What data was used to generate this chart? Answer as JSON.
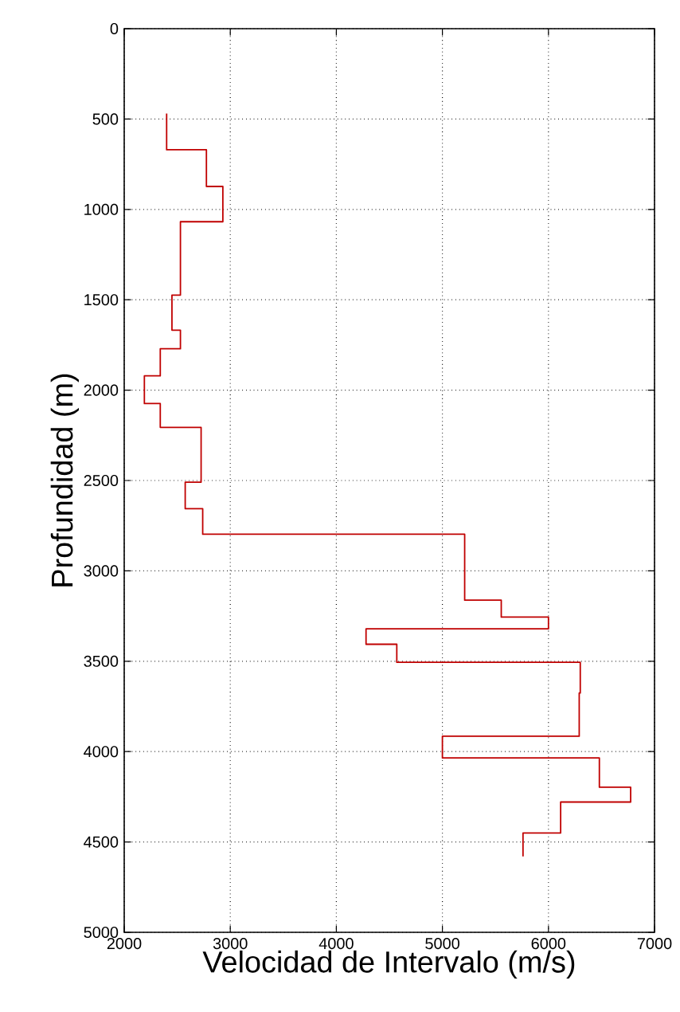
{
  "chart_data": {
    "type": "line",
    "xlabel": "Velocidad de Intervalo (m/s)",
    "ylabel": "Profundidad (m)",
    "xlim": [
      2000,
      7000
    ],
    "xticks": [
      2000,
      3000,
      4000,
      5000,
      6000,
      7000
    ],
    "ylim": [
      5000,
      0
    ],
    "yticks": [
      0,
      500,
      1000,
      1500,
      2000,
      2500,
      3000,
      3500,
      4000,
      4500,
      5000
    ],
    "grid": true,
    "line_style": "solid",
    "series": [
      {
        "color": "#c00000",
        "x": [
          2400,
          2400,
          2775,
          2775,
          2930,
          2930,
          2530,
          2530,
          2450,
          2450,
          2530,
          2530,
          2340,
          2340,
          2190,
          2190,
          2340,
          2340,
          2725,
          2725,
          2575,
          2575,
          2740,
          2740,
          5210,
          5210,
          5555,
          5555,
          6000,
          6000,
          4280,
          4280,
          4570,
          4570,
          6300,
          6300,
          6290,
          6290,
          5000,
          5000,
          6480,
          6480,
          6775,
          6775,
          6115,
          6115,
          5760,
          5760
        ],
        "values": [
          470,
          670,
          670,
          873,
          873,
          1068,
          1068,
          1474,
          1474,
          1668,
          1668,
          1771,
          1771,
          1921,
          1921,
          2074,
          2074,
          2206,
          2206,
          2509,
          2509,
          2656,
          2656,
          2797,
          2797,
          3162,
          3162,
          3256,
          3256,
          3321,
          3321,
          3406,
          3406,
          3506,
          3506,
          3676,
          3676,
          3915,
          3915,
          4035,
          4035,
          4197,
          4197,
          4279,
          4279,
          4450,
          4450,
          4580
        ]
      }
    ]
  }
}
